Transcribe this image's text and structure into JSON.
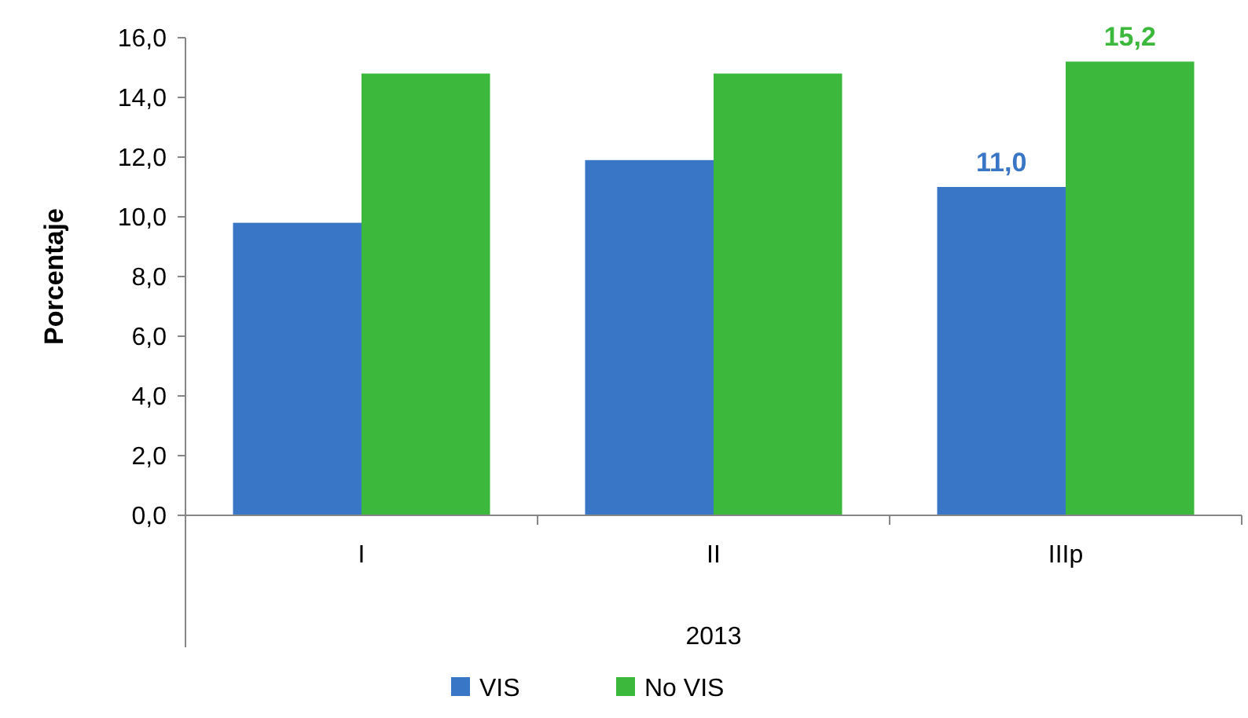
{
  "chart_data": {
    "type": "bar",
    "ylabel": "Porcentaje",
    "xlabel": "2013",
    "categories": [
      "I",
      "II",
      "IIIp"
    ],
    "series": [
      {
        "name": "VIS",
        "color": "#3a76c6",
        "values": [
          9.8,
          11.9,
          11.0
        ],
        "value_labels": [
          null,
          null,
          "11,0"
        ]
      },
      {
        "name": "No VIS",
        "color": "#3cb83c",
        "values": [
          14.8,
          14.8,
          15.2
        ],
        "value_labels": [
          null,
          null,
          "15,2"
        ]
      }
    ],
    "ylim": [
      0,
      16
    ],
    "yticks": [
      {
        "value": 0,
        "label": "0,0"
      },
      {
        "value": 2,
        "label": "2,0"
      },
      {
        "value": 4,
        "label": "4,0"
      },
      {
        "value": 6,
        "label": "6,0"
      },
      {
        "value": 8,
        "label": "8,0"
      },
      {
        "value": 10,
        "label": "10,0"
      },
      {
        "value": 12,
        "label": "12,0"
      },
      {
        "value": 14,
        "label": "14,0"
      },
      {
        "value": 16,
        "label": "16,0"
      }
    ],
    "legend": "bottom"
  }
}
